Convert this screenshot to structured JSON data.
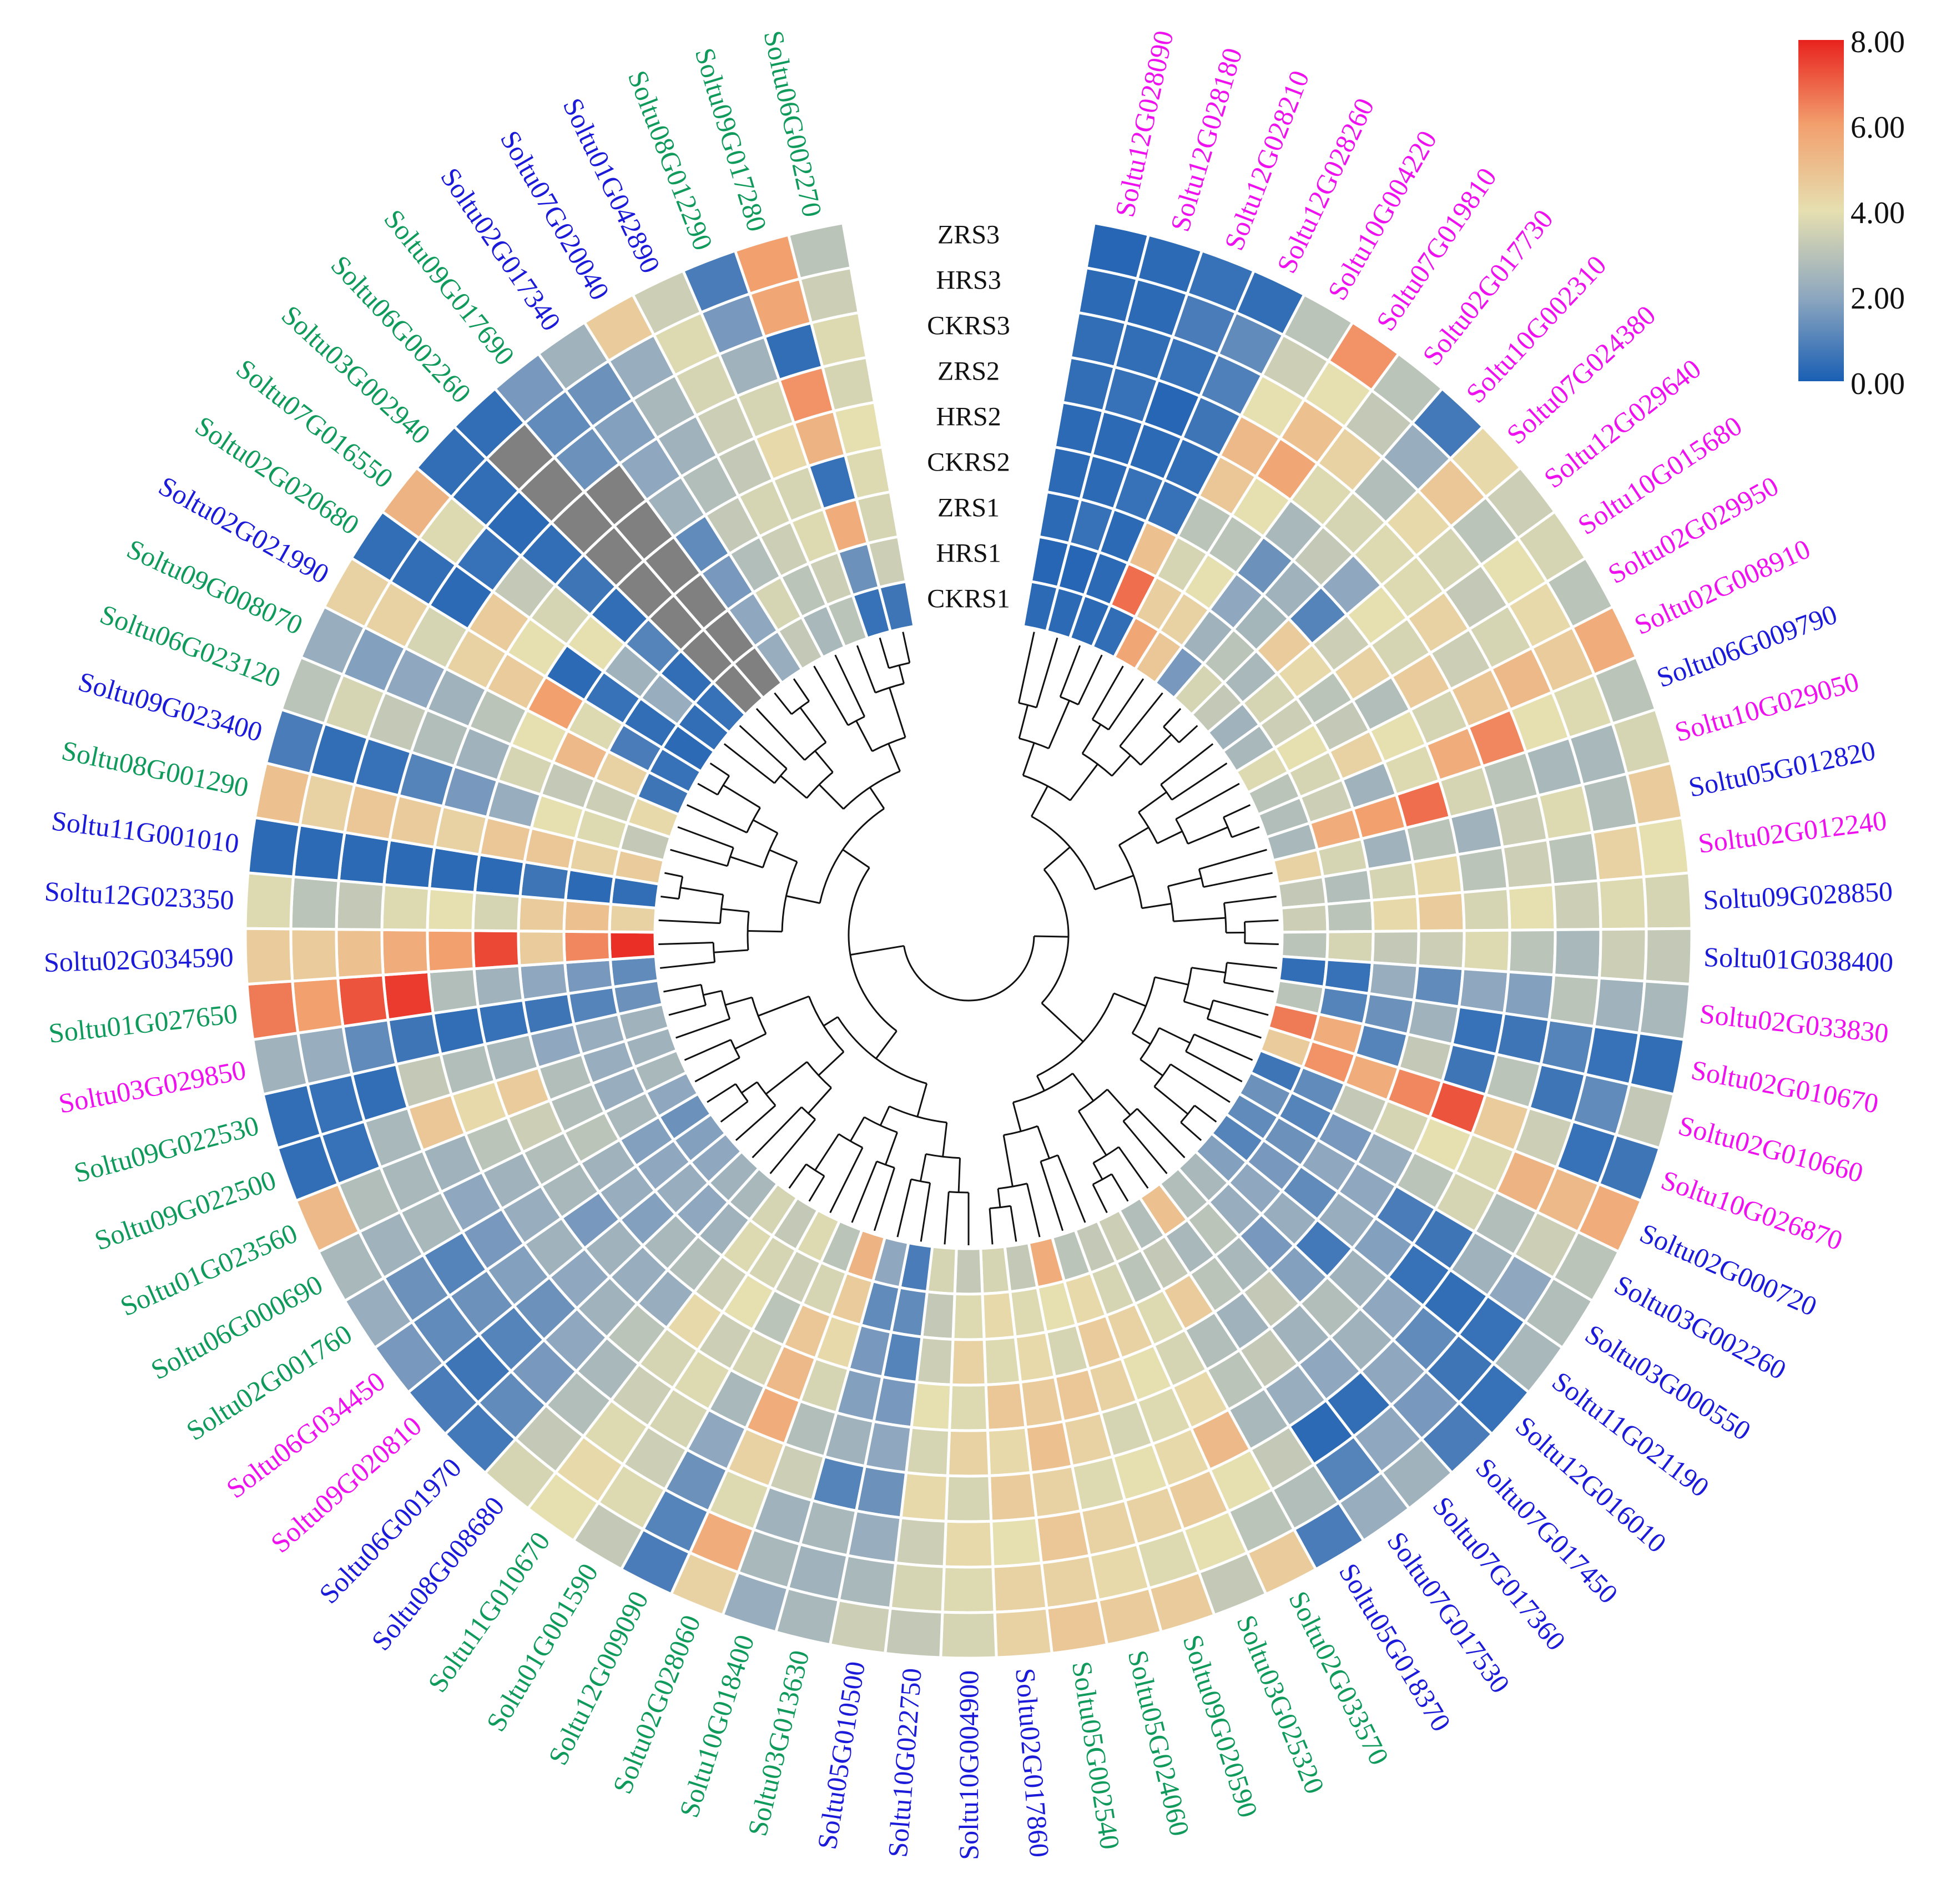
{
  "chart_data": {
    "type": "heatmap",
    "layout": "circular",
    "rings": [
      "CKRS1",
      "HRS1",
      "ZRS1",
      "CKRS2",
      "HRS2",
      "ZRS2",
      "CKRS3",
      "HRS3",
      "ZRS3"
    ],
    "colorbar": {
      "min": 0.0,
      "max": 8.0,
      "ticks": [
        "0.00",
        "2.00",
        "4.00",
        "6.00",
        "8.00"
      ],
      "colors": [
        "#1a5fb4",
        "#8fa8bf",
        "#e6dfb0",
        "#f2a06e",
        "#e8221e"
      ]
    },
    "group_colors": {
      "blue": "#1a1ad8",
      "green": "#0f9a5c",
      "magenta": "#ee10ee"
    },
    "genes": [
      {
        "name": "Soltu12G028090",
        "group": "magenta",
        "values": [
          0.3,
          0.2,
          0.3,
          0.3,
          0.3,
          0.4,
          0.4,
          0.3,
          0.2
        ]
      },
      {
        "name": "Soltu12G028180",
        "group": "magenta",
        "values": [
          0.3,
          0.2,
          0.5,
          0.3,
          0.3,
          0.5,
          0.4,
          0.3,
          0.3
        ]
      },
      {
        "name": "Soltu12G028210",
        "group": "magenta",
        "values": [
          0.3,
          0.3,
          0.3,
          0.5,
          0.3,
          0.2,
          0.5,
          0.8,
          0.5
        ]
      },
      {
        "name": "Soltu12G028260",
        "group": "magenta",
        "values": [
          0.4,
          6.8,
          5.0,
          0.5,
          0.4,
          0.6,
          0.9,
          1.2,
          0.4
        ]
      },
      {
        "name": "Soltu10G004220",
        "group": "magenta",
        "values": [
          5.8,
          4.5,
          3.6,
          3.0,
          4.8,
          5.2,
          4.0,
          3.4,
          3.0
        ]
      },
      {
        "name": "Soltu07G019810",
        "group": "magenta",
        "values": [
          4.8,
          4.4,
          4.0,
          3.0,
          4.0,
          5.8,
          5.0,
          4.0,
          6.2
        ]
      },
      {
        "name": "Soltu02G017730",
        "group": "magenta",
        "values": [
          1.6,
          2.4,
          2.0,
          1.4,
          2.6,
          3.8,
          4.4,
          3.2,
          3.0
        ]
      },
      {
        "name": "Soltu10G002310",
        "group": "magenta",
        "values": [
          3.6,
          3.0,
          2.5,
          2.4,
          3.2,
          3.6,
          2.8,
          2.2,
          0.7
        ]
      },
      {
        "name": "Soltu07G024380",
        "group": "magenta",
        "values": [
          3.2,
          2.6,
          4.6,
          1.0,
          2.0,
          3.8,
          4.2,
          4.8,
          4.2
        ]
      },
      {
        "name": "Soltu12G029640",
        "group": "magenta",
        "values": [
          2.4,
          3.6,
          4.2,
          3.4,
          4.0,
          3.8,
          3.6,
          3.0,
          3.4
        ]
      },
      {
        "name": "Soltu10G015680",
        "group": "magenta",
        "values": [
          2.6,
          3.4,
          3.0,
          4.4,
          3.6,
          4.4,
          3.2,
          4.0,
          3.6
        ]
      },
      {
        "name": "Soltu02G029950",
        "group": "magenta",
        "values": [
          3.8,
          4.0,
          3.2,
          2.8,
          4.6,
          3.4,
          3.6,
          4.2,
          3.0
        ]
      },
      {
        "name": "Soltu02G008910",
        "group": "magenta",
        "values": [
          3.0,
          3.6,
          4.4,
          4.0,
          3.6,
          4.8,
          5.2,
          4.6,
          5.6
        ]
      },
      {
        "name": "Soltu06G009790",
        "group": "blue",
        "values": [
          2.8,
          3.4,
          2.4,
          3.8,
          5.6,
          6.4,
          4.0,
          3.8,
          3.0
        ]
      },
      {
        "name": "Soltu10G029050",
        "group": "magenta",
        "values": [
          2.6,
          5.6,
          6.0,
          6.8,
          3.6,
          3.0,
          2.6,
          2.6,
          3.6
        ]
      },
      {
        "name": "Soltu05G012820",
        "group": "blue",
        "values": [
          4.4,
          3.6,
          2.4,
          3.0,
          2.4,
          3.4,
          3.8,
          2.8,
          4.6
        ]
      },
      {
        "name": "Soltu02G012240",
        "group": "magenta",
        "values": [
          3.2,
          2.8,
          3.6,
          4.2,
          3.0,
          3.4,
          3.0,
          4.4,
          4.0
        ]
      },
      {
        "name": "Soltu09G028850",
        "group": "blue",
        "values": [
          3.4,
          3.0,
          4.2,
          4.6,
          3.6,
          4.0,
          3.4,
          3.8,
          3.6
        ]
      },
      {
        "name": "Soltu01G038400",
        "group": "blue",
        "values": [
          3.0,
          3.6,
          3.2,
          3.4,
          3.8,
          3.0,
          2.6,
          3.4,
          3.2
        ]
      },
      {
        "name": "Soltu02G033830",
        "group": "magenta",
        "values": [
          0.4,
          0.5,
          2.2,
          1.2,
          2.0,
          1.8,
          3.0,
          2.4,
          2.6
        ]
      },
      {
        "name": "Soltu02G010670",
        "group": "magenta",
        "values": [
          3.0,
          1.0,
          1.4,
          2.4,
          0.5,
          0.6,
          1.0,
          0.5,
          0.4
        ]
      },
      {
        "name": "Soltu02G010660",
        "group": "magenta",
        "values": [
          6.6,
          5.6,
          1.0,
          3.2,
          0.6,
          3.0,
          0.6,
          1.2,
          3.2
        ]
      },
      {
        "name": "Soltu10G026870",
        "group": "magenta",
        "values": [
          4.6,
          6.2,
          5.6,
          6.4,
          7.2,
          4.6,
          3.4,
          0.5,
          0.6
        ]
      },
      {
        "name": "Soltu02G000720",
        "group": "blue",
        "values": [
          0.6,
          1.2,
          3.2,
          3.6,
          4.0,
          3.8,
          5.4,
          5.2,
          5.6
        ]
      },
      {
        "name": "Soltu03G002260",
        "group": "blue",
        "values": [
          1.4,
          1.0,
          1.6,
          2.2,
          3.0,
          3.6,
          2.8,
          3.4,
          3.0
        ]
      },
      {
        "name": "Soltu03G000550",
        "group": "blue",
        "values": [
          1.2,
          1.4,
          2.0,
          2.0,
          0.8,
          0.6,
          2.4,
          2.0,
          2.8
        ]
      },
      {
        "name": "Soltu11G021190",
        "group": "blue",
        "values": [
          1.0,
          1.6,
          1.2,
          2.2,
          1.8,
          0.5,
          0.4,
          0.5,
          2.6
        ]
      },
      {
        "name": "Soltu12G016010",
        "group": "blue",
        "values": [
          1.8,
          2.0,
          2.2,
          0.7,
          2.4,
          2.0,
          1.2,
          0.6,
          0.5
        ]
      },
      {
        "name": "Soltu07G017450",
        "group": "blue",
        "values": [
          2.6,
          2.2,
          1.6,
          1.8,
          2.8,
          2.4,
          2.0,
          1.6,
          0.8
        ]
      },
      {
        "name": "Soltu07G017360",
        "group": "blue",
        "values": [
          2.8,
          3.0,
          2.6,
          3.2,
          2.4,
          2.0,
          0.4,
          2.0,
          2.4
        ]
      },
      {
        "name": "Soltu07G017530",
        "group": "blue",
        "values": [
          5.0,
          2.6,
          3.0,
          2.4,
          3.2,
          2.2,
          0.3,
          1.0,
          2.2
        ]
      },
      {
        "name": "Soltu05G018370",
        "group": "blue",
        "values": [
          2.8,
          3.2,
          4.6,
          2.8,
          3.0,
          2.6,
          3.2,
          2.8,
          0.8
        ]
      },
      {
        "name": "Soltu02G033570",
        "group": "green",
        "values": [
          3.4,
          3.0,
          3.8,
          3.6,
          4.2,
          5.2,
          4.0,
          3.0,
          4.6
        ]
      },
      {
        "name": "Soltu03G025320",
        "group": "green",
        "values": [
          3.2,
          3.6,
          4.4,
          4.0,
          3.8,
          4.2,
          4.6,
          4.0,
          3.2
        ]
      },
      {
        "name": "Soltu09G020590",
        "group": "green",
        "values": [
          3.0,
          4.2,
          4.6,
          4.4,
          3.6,
          4.0,
          4.4,
          3.8,
          4.6
        ]
      },
      {
        "name": "Soltu05G024060",
        "group": "green",
        "values": [
          5.6,
          4.0,
          3.6,
          4.8,
          4.4,
          3.8,
          4.4,
          4.2,
          4.6
        ]
      },
      {
        "name": "Soltu05G002540",
        "group": "green",
        "values": [
          3.2,
          3.8,
          4.2,
          4.6,
          5.0,
          4.4,
          4.8,
          4.4,
          4.8
        ]
      },
      {
        "name": "Soltu02G017860",
        "group": "blue",
        "values": [
          3.6,
          4.2,
          3.8,
          4.8,
          4.2,
          4.6,
          4.0,
          4.4,
          4.4
        ]
      },
      {
        "name": "Soltu10G004900",
        "group": "blue",
        "values": [
          3.2,
          3.8,
          4.4,
          3.8,
          4.4,
          3.6,
          4.2,
          3.8,
          3.6
        ]
      },
      {
        "name": "Soltu10G022750",
        "group": "blue",
        "values": [
          3.6,
          3.2,
          3.4,
          4.0,
          3.6,
          4.2,
          3.4,
          3.6,
          3.2
        ]
      },
      {
        "name": "Soltu05G010500",
        "group": "blue",
        "values": [
          0.8,
          1.2,
          1.0,
          1.6,
          2.0,
          1.4,
          2.2,
          2.6,
          3.4
        ]
      },
      {
        "name": "Soltu03G013630",
        "group": "green",
        "values": [
          2.0,
          1.2,
          1.6,
          1.8,
          2.4,
          1.0,
          2.6,
          2.4,
          2.6
        ]
      },
      {
        "name": "Soltu10G018400",
        "group": "green",
        "values": [
          5.4,
          4.6,
          4.2,
          3.6,
          2.8,
          3.4,
          2.4,
          2.6,
          2.2
        ]
      },
      {
        "name": "Soltu02G028060",
        "group": "green",
        "values": [
          3.0,
          3.6,
          4.8,
          5.2,
          5.6,
          4.4,
          3.8,
          5.6,
          4.4
        ]
      },
      {
        "name": "Soltu12G009090",
        "group": "green",
        "values": [
          3.8,
          3.4,
          3.0,
          3.6,
          2.6,
          2.0,
          1.4,
          1.0,
          0.8
        ]
      },
      {
        "name": "Soltu01G001590",
        "group": "green",
        "values": [
          3.2,
          3.6,
          4.0,
          3.4,
          3.8,
          3.6,
          3.4,
          3.8,
          3.2
        ]
      },
      {
        "name": "Soltu11G010670",
        "group": "green",
        "values": [
          3.6,
          3.8,
          3.4,
          4.2,
          3.6,
          3.4,
          3.8,
          4.2,
          4.0
        ]
      },
      {
        "name": "Soltu08G008680",
        "group": "blue",
        "values": [
          2.6,
          2.4,
          2.8,
          2.2,
          3.0,
          2.6,
          2.8,
          3.2,
          3.6
        ]
      },
      {
        "name": "Soltu06G001970",
        "group": "blue",
        "values": [
          2.4,
          2.0,
          2.6,
          2.2,
          2.4,
          2.0,
          1.6,
          1.2,
          0.7
        ]
      },
      {
        "name": "Soltu09G020810",
        "group": "magenta",
        "values": [
          2.0,
          2.2,
          1.8,
          2.4,
          2.0,
          1.4,
          1.0,
          0.6,
          0.8
        ]
      },
      {
        "name": "Soltu06G034450",
        "group": "magenta",
        "values": [
          1.8,
          2.0,
          2.2,
          1.6,
          2.4,
          1.8,
          1.4,
          1.2,
          1.6
        ]
      },
      {
        "name": "Soltu02G001760",
        "group": "green",
        "values": [
          1.4,
          1.8,
          2.4,
          2.6,
          2.2,
          1.6,
          1.0,
          1.4,
          2.2
        ]
      },
      {
        "name": "Soltu06G000690",
        "group": "green",
        "values": [
          2.0,
          2.6,
          3.0,
          2.8,
          2.4,
          2.0,
          2.6,
          2.4,
          2.6
        ]
      },
      {
        "name": "Soltu01G023560",
        "group": "green",
        "values": [
          2.6,
          2.2,
          2.8,
          3.4,
          3.0,
          2.4,
          2.6,
          2.8,
          5.2
        ]
      },
      {
        "name": "Soltu09G022500",
        "group": "green",
        "values": [
          2.4,
          2.2,
          2.8,
          4.6,
          4.2,
          4.8,
          2.6,
          0.5,
          0.4
        ]
      },
      {
        "name": "Soltu09G022530",
        "group": "green",
        "values": [
          2.4,
          2.2,
          2.0,
          2.6,
          2.8,
          3.2,
          0.4,
          0.5,
          0.4
        ]
      },
      {
        "name": "Soltu03G029850",
        "group": "magenta",
        "values": [
          1.4,
          1.0,
          0.6,
          0.5,
          0.4,
          0.6,
          1.2,
          2.2,
          2.4
        ]
      },
      {
        "name": "Soltu01G027650",
        "group": "green",
        "values": [
          1.2,
          1.6,
          2.0,
          2.4,
          2.8,
          7.6,
          7.2,
          6.0,
          6.6
        ]
      },
      {
        "name": "Soltu02G034590",
        "group": "blue",
        "values": [
          7.8,
          6.4,
          4.6,
          7.4,
          6.0,
          5.6,
          5.0,
          4.6,
          4.6
        ]
      },
      {
        "name": "Soltu12G023350",
        "group": "blue",
        "values": [
          4.4,
          5.0,
          4.6,
          3.6,
          4.0,
          3.8,
          3.2,
          3.0,
          3.8
        ]
      },
      {
        "name": "Soltu11G001010",
        "group": "blue",
        "values": [
          0.4,
          0.3,
          0.6,
          0.3,
          0.3,
          0.3,
          0.3,
          0.3,
          0.3
        ]
      },
      {
        "name": "Soltu08G001290",
        "group": "green",
        "values": [
          4.6,
          4.4,
          4.8,
          4.8,
          4.4,
          4.6,
          4.8,
          4.4,
          5.0
        ]
      },
      {
        "name": "Soltu09G023400",
        "group": "blue",
        "values": [
          3.2,
          3.8,
          4.0,
          2.2,
          1.6,
          1.0,
          0.5,
          0.4,
          0.8
        ]
      },
      {
        "name": "Soltu06G023120",
        "group": "green",
        "values": [
          4.2,
          3.4,
          3.2,
          3.6,
          2.4,
          2.8,
          3.2,
          3.6,
          3.0
        ]
      },
      {
        "name": "Soltu09G008070",
        "group": "green",
        "values": [
          0.6,
          4.4,
          5.2,
          4.0,
          3.0,
          2.4,
          2.0,
          1.8,
          2.2
        ]
      },
      {
        "name": "Soltu02G021990",
        "group": "blue",
        "values": [
          0.5,
          0.8,
          3.8,
          6.0,
          4.6,
          4.4,
          3.6,
          4.4,
          4.4
        ]
      },
      {
        "name": "Soltu02G020680",
        "group": "green",
        "values": [
          0.3,
          0.4,
          0.5,
          0.3,
          4.0,
          4.6,
          0.3,
          0.4,
          0.4
        ]
      },
      {
        "name": "Soltu07G016550",
        "group": "green",
        "values": [
          0.4,
          2.2,
          2.4,
          4.0,
          3.6,
          3.2,
          0.5,
          3.8,
          5.4
        ]
      },
      {
        "name": "Soltu03G002940",
        "group": "green",
        "values": [
          0.5,
          0.4,
          1.0,
          0.4,
          0.6,
          0.4,
          0.3,
          0.4,
          0.4
        ]
      },
      {
        "name": "Soltu06G002260",
        "group": "green",
        "values": [
          null,
          null,
          null,
          null,
          null,
          null,
          null,
          null,
          0.4
        ]
      },
      {
        "name": "Soltu09G017690",
        "group": "green",
        "values": [
          null,
          null,
          null,
          null,
          null,
          null,
          1.4,
          1.2,
          1.6
        ]
      },
      {
        "name": "Soltu02G017340",
        "group": "blue",
        "values": [
          2.2,
          2.0,
          1.6,
          1.2,
          2.4,
          2.0,
          1.8,
          1.4,
          2.4
        ]
      },
      {
        "name": "Soltu07G020040",
        "group": "blue",
        "values": [
          3.2,
          3.6,
          2.8,
          3.2,
          2.8,
          2.4,
          2.6,
          2.2,
          4.6
        ]
      },
      {
        "name": "Soltu01G042890",
        "group": "blue",
        "values": [
          2.6,
          3.0,
          3.4,
          3.6,
          3.2,
          3.4,
          3.6,
          3.8,
          3.4
        ]
      },
      {
        "name": "Soltu08G012290",
        "group": "green",
        "values": [
          3.0,
          3.4,
          3.8,
          3.6,
          4.2,
          3.6,
          2.4,
          1.6,
          0.8
        ]
      },
      {
        "name": "Soltu09G017280",
        "group": "green",
        "values": [
          0.5,
          1.4,
          5.6,
          0.5,
          5.4,
          6.2,
          0.4,
          5.8,
          6.0
        ]
      },
      {
        "name": "Soltu06G002270",
        "group": "green",
        "values": [
          0.6,
          3.4,
          3.6,
          3.8,
          4.0,
          3.6,
          3.8,
          3.4,
          3.0
        ]
      }
    ]
  }
}
